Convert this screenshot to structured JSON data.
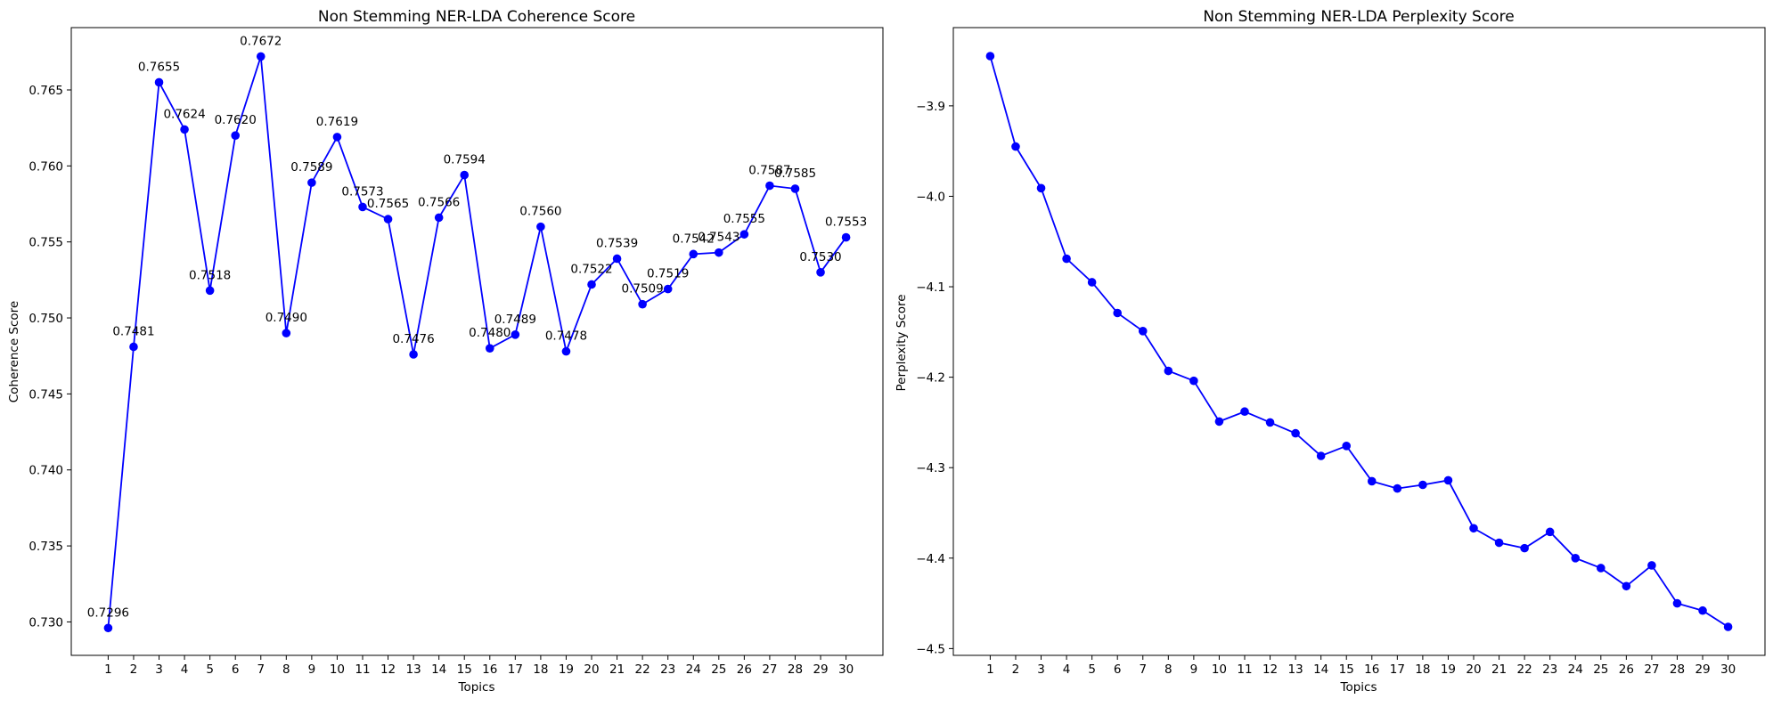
{
  "chart_data": [
    {
      "type": "line",
      "title": "Non Stemming NER-LDA Coherence Score",
      "xlabel": "Topics",
      "ylabel": "Coherence Score",
      "x": [
        1,
        2,
        3,
        4,
        5,
        6,
        7,
        8,
        9,
        10,
        11,
        12,
        13,
        14,
        15,
        16,
        17,
        18,
        19,
        20,
        21,
        22,
        23,
        24,
        25,
        26,
        27,
        28,
        29,
        30
      ],
      "xticks": [
        "1",
        "2",
        "3",
        "4",
        "5",
        "6",
        "7",
        "8",
        "9",
        "10",
        "11",
        "12",
        "13",
        "14",
        "15",
        "16",
        "17",
        "18",
        "19",
        "20",
        "21",
        "22",
        "23",
        "24",
        "25",
        "26",
        "27",
        "28",
        "29",
        "30"
      ],
      "values": [
        0.7296,
        0.7481,
        0.7655,
        0.7624,
        0.7518,
        0.762,
        0.7672,
        0.749,
        0.7589,
        0.7619,
        0.7573,
        0.7565,
        0.7476,
        0.7566,
        0.7594,
        0.748,
        0.7489,
        0.756,
        0.7478,
        0.7522,
        0.7539,
        0.7509,
        0.7519,
        0.7542,
        0.7543,
        0.7555,
        0.7587,
        0.7585,
        0.753,
        0.7553
      ],
      "data_labels": [
        "0.7296",
        "0.7481",
        "0.7655",
        "0.7624",
        "0.7518",
        "0.7620",
        "0.7672",
        "0.7490",
        "0.7589",
        "0.7619",
        "0.7573",
        "0.7565",
        "0.7476",
        "0.7566",
        "0.7594",
        "0.7480",
        "0.7489",
        "0.7560",
        "0.7478",
        "0.7522",
        "0.7539",
        "0.7509",
        "0.7519",
        "0.7542",
        "0.7543",
        "0.7555",
        "0.7587",
        "0.7585",
        "0.7530",
        "0.7553"
      ],
      "yticks": [
        0.73,
        0.735,
        0.74,
        0.745,
        0.75,
        0.755,
        0.76,
        0.765
      ],
      "ytick_labels": [
        "0.730",
        "0.735",
        "0.740",
        "0.745",
        "0.750",
        "0.755",
        "0.760",
        "0.765"
      ],
      "xlim": [
        -0.45,
        31.45
      ],
      "ylim": [
        0.7278,
        0.7691
      ],
      "grid": false,
      "color": "#0000ff",
      "marker": "circle"
    },
    {
      "type": "line",
      "title": "Non Stemming NER-LDA Perplexity Score",
      "xlabel": "Topics",
      "ylabel": "Perplexity Score",
      "x": [
        1,
        2,
        3,
        4,
        5,
        6,
        7,
        8,
        9,
        10,
        11,
        12,
        13,
        14,
        15,
        16,
        17,
        18,
        19,
        20,
        21,
        22,
        23,
        24,
        25,
        26,
        27,
        28,
        29,
        30
      ],
      "xticks": [
        "1",
        "2",
        "3",
        "4",
        "5",
        "6",
        "7",
        "8",
        "9",
        "10",
        "11",
        "12",
        "13",
        "14",
        "15",
        "16",
        "17",
        "18",
        "19",
        "20",
        "21",
        "22",
        "23",
        "24",
        "25",
        "26",
        "27",
        "28",
        "29",
        "30"
      ],
      "values": [
        -3.845,
        -3.945,
        -3.991,
        -4.069,
        -4.095,
        -4.129,
        -4.149,
        -4.193,
        -4.204,
        -4.249,
        -4.238,
        -4.25,
        -4.262,
        -4.287,
        -4.276,
        -4.315,
        -4.323,
        -4.319,
        -4.314,
        -4.367,
        -4.383,
        -4.389,
        -4.371,
        -4.4,
        -4.411,
        -4.431,
        -4.408,
        -4.45,
        -4.458,
        -4.476
      ],
      "yticks": [
        -4.5,
        -4.4,
        -4.3,
        -4.2,
        -4.1,
        -4.0,
        -3.9
      ],
      "ytick_labels": [
        "−4.5",
        "−4.4",
        "−4.3",
        "−4.2",
        "−4.1",
        "−4.0",
        "−3.9"
      ],
      "xlim": [
        -0.45,
        31.45
      ],
      "ylim": [
        -4.5075,
        -3.8135
      ],
      "grid": false,
      "color": "#0000ff",
      "marker": "circle"
    }
  ]
}
